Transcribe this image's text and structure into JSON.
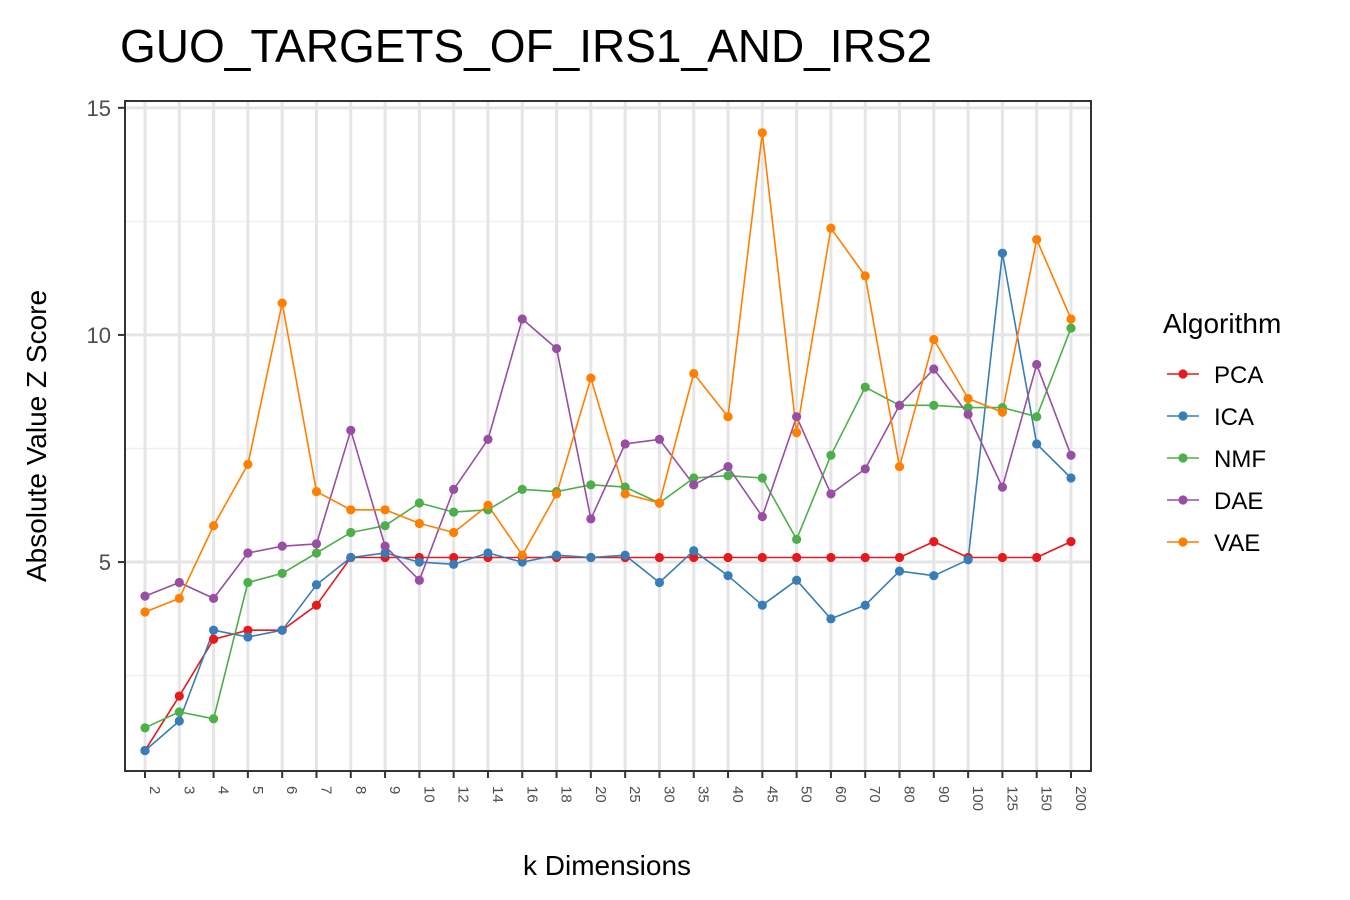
{
  "chart_data": {
    "type": "line",
    "title": "GUO_TARGETS_OF_IRS1_AND_IRS2",
    "xlabel": "k Dimensions",
    "ylabel": "Absolute Value Z Score",
    "categories": [
      "2",
      "3",
      "4",
      "5",
      "6",
      "7",
      "8",
      "9",
      "10",
      "12",
      "14",
      "16",
      "18",
      "20",
      "25",
      "30",
      "35",
      "40",
      "45",
      "50",
      "60",
      "70",
      "80",
      "90",
      "100",
      "125",
      "150",
      "200"
    ],
    "yticks": [
      5,
      10,
      15
    ],
    "ylim": [
      0.4,
      15.15
    ],
    "grid": true,
    "legend": {
      "title": "Algorithm",
      "placement": "right"
    },
    "series": [
      {
        "name": "PCA",
        "color": "#e41a1c",
        "values": [
          0.85,
          2.05,
          3.3,
          3.5,
          3.5,
          4.05,
          5.1,
          5.1,
          5.1,
          5.1,
          5.1,
          5.1,
          5.1,
          5.1,
          5.1,
          5.1,
          5.1,
          5.1,
          5.1,
          5.1,
          5.1,
          5.1,
          5.1,
          5.45,
          5.1,
          5.1,
          5.1,
          5.45
        ]
      },
      {
        "name": "ICA",
        "color": "#377eb8",
        "values": [
          0.85,
          1.5,
          3.5,
          3.35,
          3.5,
          4.5,
          5.1,
          5.2,
          5.0,
          4.95,
          5.2,
          5.0,
          5.15,
          5.1,
          5.15,
          4.55,
          5.25,
          4.7,
          4.05,
          4.6,
          3.75,
          4.05,
          4.8,
          4.7,
          5.05,
          11.8,
          7.6,
          6.85
        ]
      },
      {
        "name": "NMF",
        "color": "#4daf4a",
        "values": [
          1.35,
          1.7,
          1.55,
          4.55,
          4.75,
          5.2,
          5.65,
          5.8,
          6.3,
          6.1,
          6.15,
          6.6,
          6.55,
          6.7,
          6.65,
          6.3,
          6.85,
          6.9,
          6.85,
          5.5,
          7.35,
          8.85,
          8.45,
          8.45,
          8.4,
          8.4,
          8.2,
          10.15
        ]
      },
      {
        "name": "DAE",
        "color": "#984ea3",
        "values": [
          4.25,
          4.55,
          4.2,
          5.2,
          5.35,
          5.4,
          7.9,
          5.35,
          4.6,
          6.6,
          7.7,
          10.35,
          9.7,
          5.95,
          7.6,
          7.7,
          6.7,
          7.1,
          6.0,
          8.2,
          6.5,
          7.05,
          8.45,
          9.25,
          8.25,
          6.65,
          9.35,
          7.35
        ]
      },
      {
        "name": "VAE",
        "color": "#ff7f00",
        "values": [
          3.9,
          4.2,
          5.8,
          7.15,
          10.7,
          6.55,
          6.15,
          6.15,
          5.85,
          5.65,
          6.25,
          5.15,
          6.5,
          9.05,
          6.5,
          6.3,
          9.15,
          8.2,
          14.45,
          7.85,
          12.35,
          11.3,
          7.1,
          9.9,
          8.6,
          8.3,
          12.1,
          10.35
        ]
      }
    ]
  }
}
